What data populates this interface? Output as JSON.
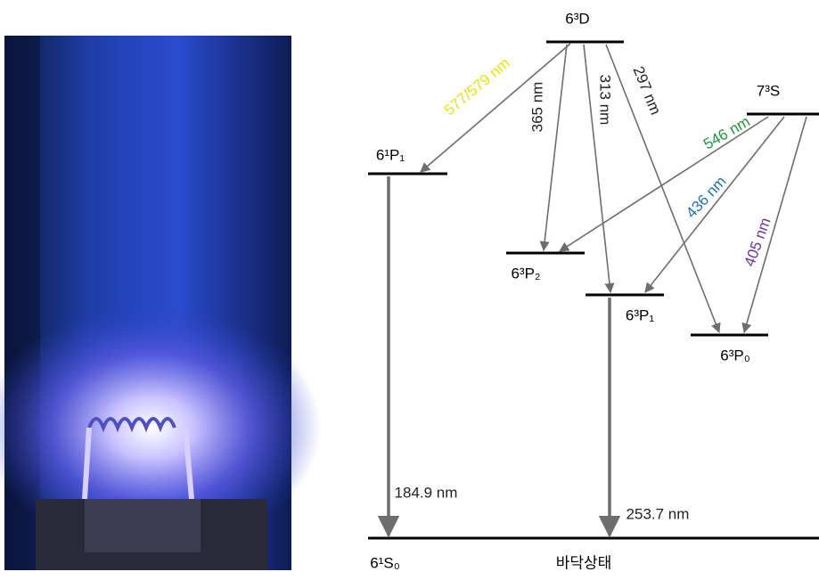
{
  "levels": [
    {
      "label": "6³D"
    },
    {
      "label": "7³S"
    },
    {
      "label": "6¹P₁"
    },
    {
      "label": "6³P₂"
    },
    {
      "label": "6³P₁"
    },
    {
      "label": "6³P₀"
    },
    {
      "label": "6¹S₀"
    }
  ],
  "ground_label": "바닥상태",
  "transitions": [
    {
      "label": "577/579 nm",
      "color": "#e6e600"
    },
    {
      "label": "365 nm",
      "color": "#222222"
    },
    {
      "label": "313 nm",
      "color": "#222222"
    },
    {
      "label": "297 nm",
      "color": "#222222"
    },
    {
      "label": "546 nm",
      "color": "#1a9a3a"
    },
    {
      "label": "436 nm",
      "color": "#1f6fc4"
    },
    {
      "label": "405 nm",
      "color": "#7030a0"
    },
    {
      "label": "184.9 nm",
      "color": "#222222"
    },
    {
      "label": "253.7 nm",
      "color": "#222222"
    }
  ]
}
